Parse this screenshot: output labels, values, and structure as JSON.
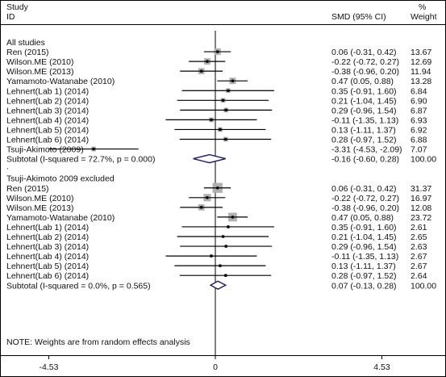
{
  "chart_data": {
    "type": "forest",
    "header": {
      "study_line1": "Study",
      "study_line2": "ID",
      "effect": "SMD (95% CI)",
      "weight_line1": "%",
      "weight_line2": "Weight"
    },
    "x_ticks": [
      "-4.53",
      "0",
      "4.53"
    ],
    "xlim": [
      -4.53,
      4.53
    ],
    "groups": [
      {
        "title": "All studies",
        "studies": [
          {
            "label": "Ren  (2015)",
            "smd": 0.06,
            "lo": -0.31,
            "hi": 0.42,
            "ci_text": "0.06 (-0.31, 0.42)",
            "weight": "13.67"
          },
          {
            "label": "Wilson.ME (2010)",
            "smd": -0.22,
            "lo": -0.72,
            "hi": 0.27,
            "ci_text": "-0.22 (-0.72, 0.27)",
            "weight": "12.69"
          },
          {
            "label": "Wilson.ME (2013)",
            "smd": -0.38,
            "lo": -0.96,
            "hi": 0.2,
            "ci_text": "-0.38 (-0.96, 0.20)",
            "weight": "11.94"
          },
          {
            "label": "Yamamoto-Watanabe (2010)",
            "smd": 0.47,
            "lo": 0.05,
            "hi": 0.88,
            "ci_text": "0.47 (0.05, 0.88)",
            "weight": "13.28"
          },
          {
            "label": "Lehnert(Lab 1) (2014)",
            "smd": 0.35,
            "lo": -0.91,
            "hi": 1.6,
            "ci_text": "0.35 (-0.91, 1.60)",
            "weight": "6.84"
          },
          {
            "label": "Lehnert(Lab 2) (2014)",
            "smd": 0.21,
            "lo": -1.04,
            "hi": 1.45,
            "ci_text": "0.21 (-1.04, 1.45)",
            "weight": "6.90"
          },
          {
            "label": "Lehnert(Lab 3) (2014)",
            "smd": 0.29,
            "lo": -0.96,
            "hi": 1.54,
            "ci_text": "0.29 (-0.96, 1.54)",
            "weight": "6.87"
          },
          {
            "label": "Lehnert(Lab 4) (2014)",
            "smd": -0.11,
            "lo": -1.35,
            "hi": 1.13,
            "ci_text": "-0.11 (-1.35, 1.13)",
            "weight": "6.93"
          },
          {
            "label": "Lehnert(Lab 5) (2014)",
            "smd": 0.13,
            "lo": -1.11,
            "hi": 1.37,
            "ci_text": "0.13 (-1.11, 1.37)",
            "weight": "6.92"
          },
          {
            "label": "Lehnert(Lab 6) (2014)",
            "smd": 0.28,
            "lo": -0.97,
            "hi": 1.52,
            "ci_text": "0.28 (-0.97, 1.52)",
            "weight": "6.88"
          },
          {
            "label": "Tsuji-Akimoto (2009)",
            "smd": -3.31,
            "lo": -4.53,
            "hi": -2.09,
            "ci_text": "-3.31 (-4.53, -2.09)",
            "weight": "7.07"
          }
        ],
        "subtotal": {
          "label": "Subtotal  (I-squared = 72.7%, p = 0.000)",
          "smd": -0.16,
          "lo": -0.6,
          "hi": 0.28,
          "ci_text": "-0.16 (-0.60, 0.28)",
          "weight": "100.00"
        }
      },
      {
        "title": "Tsuji-Akimoto 2009 excluded",
        "studies": [
          {
            "label": "Ren  (2015)",
            "smd": 0.06,
            "lo": -0.31,
            "hi": 0.42,
            "ci_text": "0.06 (-0.31, 0.42)",
            "weight": "31.37"
          },
          {
            "label": "Wilson.ME (2010)",
            "smd": -0.22,
            "lo": -0.72,
            "hi": 0.27,
            "ci_text": "-0.22 (-0.72, 0.27)",
            "weight": "16.97"
          },
          {
            "label": "Wilson.ME (2013)",
            "smd": -0.38,
            "lo": -0.96,
            "hi": 0.2,
            "ci_text": "-0.38 (-0.96, 0.20)",
            "weight": "12.08"
          },
          {
            "label": "Yamamoto-Watanabe (2010)",
            "smd": 0.47,
            "lo": 0.05,
            "hi": 0.88,
            "ci_text": "0.47 (0.05, 0.88)",
            "weight": "23.72"
          },
          {
            "label": "Lehnert(Lab 1) (2014)",
            "smd": 0.35,
            "lo": -0.91,
            "hi": 1.6,
            "ci_text": "0.35 (-0.91, 1.60)",
            "weight": "2.61"
          },
          {
            "label": "Lehnert(Lab 2) (2014)",
            "smd": 0.21,
            "lo": -1.04,
            "hi": 1.45,
            "ci_text": "0.21 (-1.04, 1.45)",
            "weight": "2.65"
          },
          {
            "label": "Lehnert(Lab 3) (2014)",
            "smd": 0.29,
            "lo": -0.96,
            "hi": 1.54,
            "ci_text": "0.29 (-0.96, 1.54)",
            "weight": "2.63"
          },
          {
            "label": "Lehnert(Lab 4) (2014)",
            "smd": -0.11,
            "lo": -1.35,
            "hi": 1.13,
            "ci_text": "-0.11 (-1.35, 1.13)",
            "weight": "2.67"
          },
          {
            "label": "Lehnert(Lab 5) (2014)",
            "smd": 0.13,
            "lo": -1.11,
            "hi": 1.37,
            "ci_text": "0.13 (-1.11, 1.37)",
            "weight": "2.67"
          },
          {
            "label": "Lehnert(Lab 6) (2014)",
            "smd": 0.28,
            "lo": -0.97,
            "hi": 1.52,
            "ci_text": "0.28 (-0.97, 1.52)",
            "weight": "2.64"
          }
        ],
        "subtotal": {
          "label": "Subtotal  (I-squared = 0.0%, p = 0.565)",
          "smd": 0.07,
          "lo": -0.13,
          "hi": 0.28,
          "ci_text": "0.07 (-0.13, 0.28)",
          "weight": "100.00"
        }
      }
    ],
    "note": "NOTE: Weights are from random effects analysis",
    "colors": {
      "diamond": "#1a1a6e",
      "weight_box": "#b0b0b0",
      "line": "#000000"
    }
  }
}
